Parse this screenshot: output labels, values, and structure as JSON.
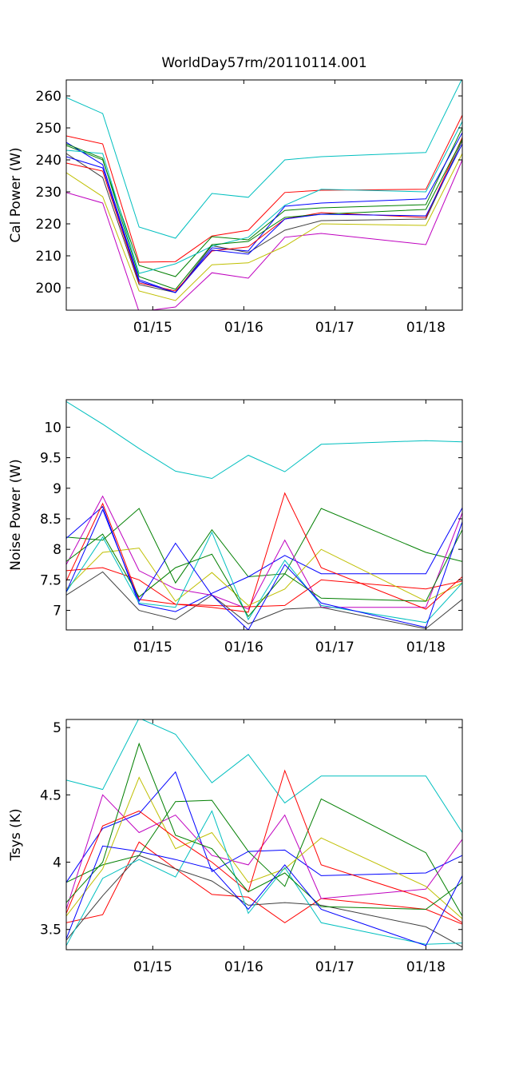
{
  "figure": {
    "title": "WorldDay57rm/20110114.001"
  },
  "palette": [
    "#00bfbf",
    "#ff0000",
    "#007f00",
    "#0000ff",
    "#bf00bf",
    "#bfbf00",
    "#3f3f3f"
  ],
  "chart_data": [
    {
      "type": "line",
      "ylabel": "Cal Power (W)",
      "xlim": [
        0,
        4.35
      ],
      "ylim": [
        193,
        265
      ],
      "yticks": [
        200,
        210,
        220,
        230,
        240,
        250,
        260
      ],
      "xticks": [
        {
          "x": 0.95,
          "label": "01/15"
        },
        {
          "x": 1.95,
          "label": "01/16"
        },
        {
          "x": 2.95,
          "label": "01/17"
        },
        {
          "x": 3.95,
          "label": "01/18"
        }
      ],
      "x": [
        0,
        0.4,
        0.8,
        1.2,
        1.6,
        2.0,
        2.4,
        2.8,
        3.95,
        4.35
      ],
      "series": [
        {
          "color": "#00bfbf",
          "values": [
            259.5,
            254.5,
            219,
            215.5,
            229.5,
            228.3,
            240,
            241,
            242.3,
            265.5
          ]
        },
        {
          "color": "#ff0000",
          "values": [
            247.5,
            245,
            208,
            208.2,
            216.2,
            218,
            229.8,
            230.5,
            230.8,
            254
          ]
        },
        {
          "color": "#007f00",
          "values": [
            244.5,
            240,
            207,
            203.5,
            216,
            215,
            224.2,
            225,
            226,
            250
          ]
        },
        {
          "color": "#0000ff",
          "values": [
            245.5,
            238.5,
            202.5,
            198.5,
            212.5,
            211.5,
            225.5,
            226.5,
            227.8,
            248.5
          ]
        },
        {
          "color": "#bf00bf",
          "values": [
            229.8,
            226.5,
            192.5,
            194,
            204.7,
            203,
            215.8,
            217,
            213.5,
            240
          ]
        },
        {
          "color": "#bfbf00",
          "values": [
            236,
            228.5,
            199,
            196,
            207.2,
            207.8,
            213,
            220,
            219.5,
            242
          ]
        },
        {
          "color": "#3f3f3f",
          "values": [
            242,
            234.5,
            201,
            198.5,
            213.2,
            211,
            218,
            221,
            221.5,
            246
          ]
        },
        {
          "color": "#ff0000",
          "values": [
            239,
            236.5,
            201.5,
            199,
            211.5,
            212.8,
            221.5,
            223.5,
            222,
            247
          ]
        },
        {
          "color": "#00bfbf",
          "values": [
            243,
            242,
            204.5,
            207.5,
            213,
            215.8,
            225.8,
            230.8,
            230,
            252
          ]
        },
        {
          "color": "#007f00",
          "values": [
            245,
            240.5,
            203.5,
            199.5,
            213.5,
            214.5,
            222,
            223,
            224.5,
            246.5
          ]
        },
        {
          "color": "#0000ff",
          "values": [
            241,
            237.5,
            202,
            198.5,
            211.8,
            210.5,
            221.5,
            223,
            222.5,
            245
          ]
        }
      ]
    },
    {
      "type": "line",
      "ylabel": "Noise Power (W)",
      "xlim": [
        0,
        4.35
      ],
      "ylim": [
        6.68,
        10.45
      ],
      "yticks": [
        7,
        7.5,
        8,
        8.5,
        9,
        9.5,
        10
      ],
      "yticklabels": [
        "7",
        "7.5",
        "8",
        "8.5",
        "9",
        "9.5",
        "10"
      ],
      "xticks": [
        {
          "x": 0.95,
          "label": "01/15"
        },
        {
          "x": 1.95,
          "label": "01/16"
        },
        {
          "x": 2.95,
          "label": "01/17"
        },
        {
          "x": 3.95,
          "label": "01/18"
        }
      ],
      "x": [
        0,
        0.4,
        0.8,
        1.2,
        1.6,
        2.0,
        2.4,
        2.8,
        3.95,
        4.35
      ],
      "series": [
        {
          "color": "#00bfbf",
          "values": [
            10.42,
            10.05,
            9.65,
            9.28,
            9.16,
            9.54,
            9.27,
            9.72,
            9.78,
            9.76
          ]
        },
        {
          "color": "#ff0000",
          "values": [
            7.65,
            7.7,
            7.5,
            7.1,
            7.08,
            7.06,
            7.08,
            7.5,
            7.35,
            7.48
          ]
        },
        {
          "color": "#007f00",
          "values": [
            8.2,
            8.15,
            8.67,
            7.45,
            8.32,
            7.55,
            7.6,
            8.67,
            7.95,
            7.8
          ]
        },
        {
          "color": "#0000ff",
          "values": [
            8.18,
            8.7,
            7.1,
            6.98,
            7.28,
            7.55,
            7.9,
            7.6,
            7.6,
            8.68
          ]
        },
        {
          "color": "#bf00bf",
          "values": [
            7.75,
            8.87,
            7.65,
            7.35,
            7.25,
            7.02,
            8.15,
            7.05,
            7.05,
            8.6
          ]
        },
        {
          "color": "#bfbf00",
          "values": [
            7.35,
            7.95,
            8.02,
            7.15,
            7.62,
            7.08,
            7.35,
            8.0,
            7.15,
            7.45
          ]
        },
        {
          "color": "#3f3f3f",
          "values": [
            7.25,
            7.63,
            7.0,
            6.85,
            7.25,
            6.78,
            7.02,
            7.05,
            6.7,
            7.18
          ]
        },
        {
          "color": "#ff0000",
          "values": [
            7.48,
            8.75,
            7.18,
            7.1,
            7.05,
            6.97,
            8.92,
            7.7,
            7.02,
            7.55
          ]
        },
        {
          "color": "#00bfbf",
          "values": [
            7.3,
            8.2,
            7.12,
            7.05,
            8.28,
            6.85,
            7.82,
            7.08,
            6.8,
            7.45
          ]
        },
        {
          "color": "#007f00",
          "values": [
            7.8,
            8.25,
            7.22,
            7.7,
            7.92,
            6.9,
            7.6,
            7.2,
            7.15,
            8.32
          ]
        },
        {
          "color": "#0000ff",
          "values": [
            7.3,
            8.65,
            7.15,
            8.1,
            7.25,
            6.68,
            7.75,
            7.12,
            6.72,
            8.45
          ]
        }
      ]
    },
    {
      "type": "line",
      "ylabel": "Tsys (K)",
      "xlim": [
        0,
        4.35
      ],
      "ylim": [
        3.35,
        5.06
      ],
      "yticks": [
        3.5,
        4,
        4.5,
        5
      ],
      "yticklabels": [
        "3.5",
        "4",
        "4.5",
        "5"
      ],
      "xticks": [
        {
          "x": 0.95,
          "label": "01/15"
        },
        {
          "x": 1.95,
          "label": "01/16"
        },
        {
          "x": 2.95,
          "label": "01/17"
        },
        {
          "x": 3.95,
          "label": "01/18"
        }
      ],
      "x": [
        0,
        0.4,
        0.8,
        1.2,
        1.6,
        2.0,
        2.4,
        2.8,
        3.95,
        4.35
      ],
      "series": [
        {
          "color": "#00bfbf",
          "values": [
            4.61,
            4.54,
            5.07,
            4.95,
            4.59,
            4.8,
            4.44,
            4.64,
            4.64,
            4.22
          ]
        },
        {
          "color": "#ff0000",
          "values": [
            3.55,
            3.61,
            4.15,
            3.95,
            3.76,
            3.74,
            3.55,
            3.73,
            3.65,
            3.54
          ]
        },
        {
          "color": "#007f00",
          "values": [
            3.85,
            3.98,
            4.05,
            4.45,
            4.46,
            4.08,
            3.82,
            4.47,
            4.07,
            3.6
          ]
        },
        {
          "color": "#0000ff",
          "values": [
            3.85,
            4.25,
            4.36,
            4.67,
            3.93,
            4.08,
            4.09,
            3.9,
            3.92,
            4.05
          ]
        },
        {
          "color": "#bf00bf",
          "values": [
            3.65,
            4.5,
            4.22,
            4.35,
            4.05,
            3.98,
            4.35,
            3.73,
            3.8,
            4.17
          ]
        },
        {
          "color": "#bfbf00",
          "values": [
            3.6,
            3.95,
            4.63,
            4.1,
            4.22,
            3.85,
            3.95,
            4.18,
            3.82,
            3.58
          ]
        },
        {
          "color": "#3f3f3f",
          "values": [
            3.42,
            3.75,
            4.05,
            3.95,
            3.86,
            3.68,
            3.7,
            3.68,
            3.52,
            3.37
          ]
        },
        {
          "color": "#ff0000",
          "values": [
            3.62,
            4.27,
            4.38,
            4.18,
            4.0,
            3.78,
            4.68,
            3.98,
            3.73,
            3.55
          ]
        },
        {
          "color": "#00bfbf",
          "values": [
            3.38,
            3.88,
            4.02,
            3.89,
            4.38,
            3.62,
            3.96,
            3.55,
            3.39,
            3.4
          ]
        },
        {
          "color": "#007f00",
          "values": [
            3.7,
            4.0,
            4.88,
            4.2,
            4.1,
            3.78,
            3.92,
            3.67,
            3.65,
            3.85
          ]
        },
        {
          "color": "#0000ff",
          "values": [
            3.43,
            4.12,
            4.08,
            4.02,
            3.95,
            3.65,
            3.98,
            3.65,
            3.38,
            3.9
          ]
        }
      ]
    }
  ]
}
